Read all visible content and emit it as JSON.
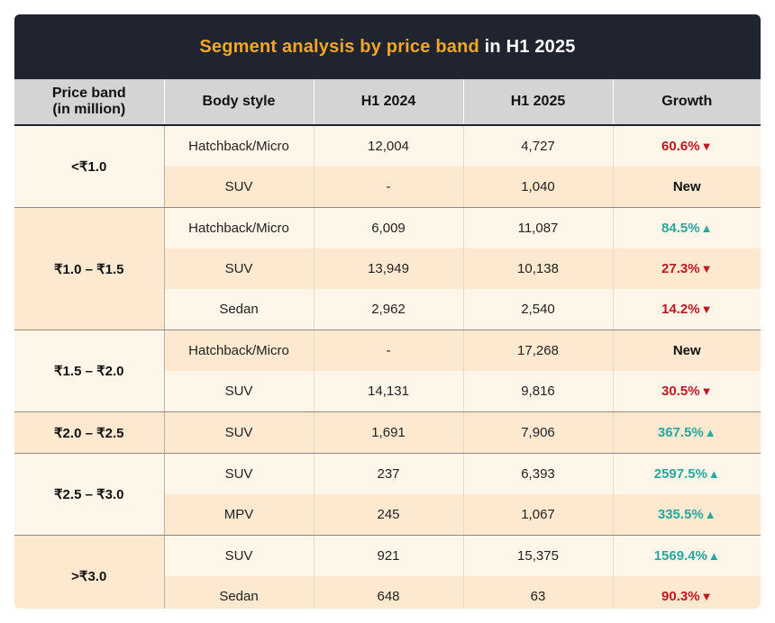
{
  "title": {
    "highlight": "Segment analysis by price band",
    "rest": " in H1 2025"
  },
  "headers": {
    "price_band_line1": "Price band",
    "price_band_line2": "(in million)",
    "body_style": "Body style",
    "h1_2024": "H1 2024",
    "h1_2025": "H1 2025",
    "growth": "Growth"
  },
  "groups": [
    {
      "band": "<₹1.0",
      "rows": [
        {
          "body": "Hatchback/Micro",
          "h1_2024": "12,004",
          "h1_2025": "4,727",
          "growth": "60.6%",
          "dir": "down"
        },
        {
          "body": "SUV",
          "h1_2024": "-",
          "h1_2025": "1,040",
          "growth": "New",
          "dir": "new"
        }
      ]
    },
    {
      "band": "₹1.0 – ₹1.5",
      "rows": [
        {
          "body": "Hatchback/Micro",
          "h1_2024": "6,009",
          "h1_2025": "11,087",
          "growth": "84.5%",
          "dir": "up"
        },
        {
          "body": "SUV",
          "h1_2024": "13,949",
          "h1_2025": "10,138",
          "growth": "27.3%",
          "dir": "down"
        },
        {
          "body": "Sedan",
          "h1_2024": "2,962",
          "h1_2025": "2,540",
          "growth": "14.2%",
          "dir": "down"
        }
      ]
    },
    {
      "band": "₹1.5 – ₹2.0",
      "rows": [
        {
          "body": "Hatchback/Micro",
          "h1_2024": "-",
          "h1_2025": "17,268",
          "growth": "New",
          "dir": "new"
        },
        {
          "body": "SUV",
          "h1_2024": "14,131",
          "h1_2025": "9,816",
          "growth": "30.5%",
          "dir": "down"
        }
      ]
    },
    {
      "band": "₹2.0 – ₹2.5",
      "rows": [
        {
          "body": "SUV",
          "h1_2024": "1,691",
          "h1_2025": "7,906",
          "growth": "367.5%",
          "dir": "up"
        }
      ]
    },
    {
      "band": "₹2.5 – ₹3.0",
      "rows": [
        {
          "body": "SUV",
          "h1_2024": "237",
          "h1_2025": "6,393",
          "growth": "2597.5%",
          "dir": "up"
        },
        {
          "body": "MPV",
          "h1_2024": "245",
          "h1_2025": "1,067",
          "growth": "335.5%",
          "dir": "up"
        }
      ]
    },
    {
      "band": ">₹3.0",
      "rows": [
        {
          "body": "SUV",
          "h1_2024": "921",
          "h1_2025": "15,375",
          "growth": "1569.4%",
          "dir": "up"
        },
        {
          "body": "Sedan",
          "h1_2024": "648",
          "h1_2025": "63",
          "growth": "90.3%",
          "dir": "down"
        }
      ]
    }
  ],
  "arrows": {
    "up": "▲",
    "down": "▼"
  },
  "colors": {
    "title_bg": "#1f2430",
    "title_accent": "#f5a623",
    "down": "#c0161f",
    "up": "#2aa79e"
  }
}
